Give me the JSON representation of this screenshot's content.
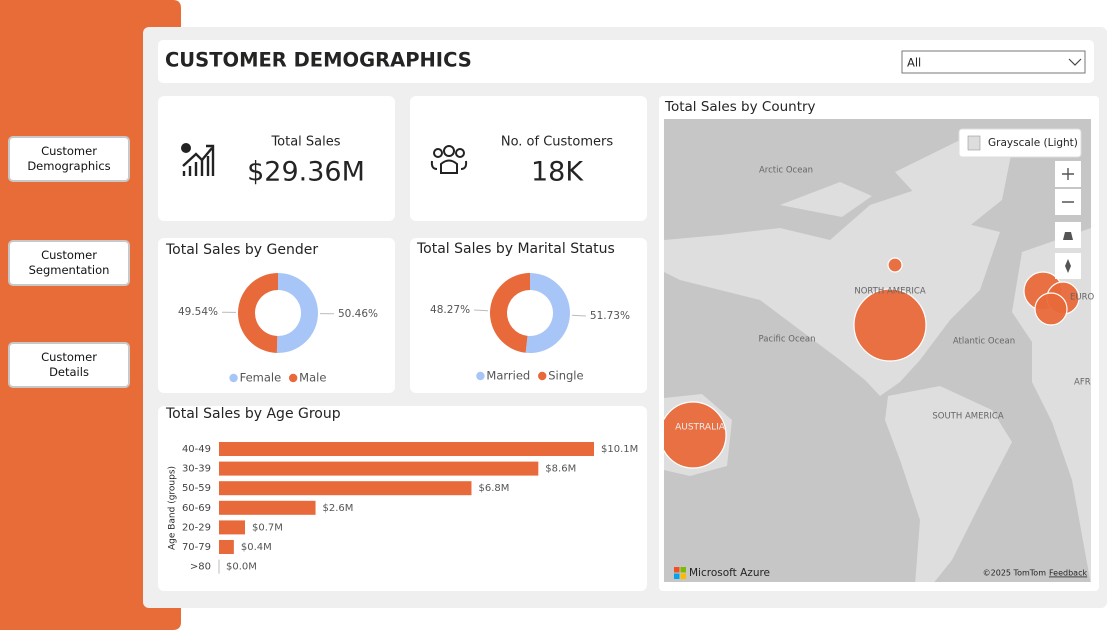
{
  "nav": [
    "Customer Demographics",
    "Customer Segmentation",
    "Customer Details"
  ],
  "header": {
    "title": "CUSTOMER DEMOGRAPHICS",
    "filter": "All"
  },
  "kpis": [
    {
      "label": "Total Sales",
      "value": "$29.36M"
    },
    {
      "label": "No. of Customers",
      "value": "18K"
    }
  ],
  "chart_data": [
    {
      "type": "donut",
      "title": "Total Sales by Gender",
      "categories": [
        "Female",
        "Male"
      ],
      "values": [
        50.46,
        49.54
      ],
      "value_labels": [
        "50.46%",
        "49.54%"
      ],
      "colors": [
        "#a8c5f7",
        "#e8693a"
      ]
    },
    {
      "type": "donut",
      "title": "Total Sales by Marital Status",
      "categories": [
        "Married",
        "Single"
      ],
      "values": [
        51.73,
        48.27
      ],
      "value_labels": [
        "51.73%",
        "48.27%"
      ],
      "colors": [
        "#a8c5f7",
        "#e8693a"
      ]
    },
    {
      "type": "hbar",
      "title": "Total Sales by Age Group",
      "y_label": "Age Band (groups)",
      "categories": [
        "40-49",
        "30-39",
        "50-59",
        "60-69",
        "20-29",
        "70-79",
        ">80"
      ],
      "values": [
        10.1,
        8.6,
        6.8,
        2.6,
        0.7,
        0.4,
        0.0
      ],
      "value_labels": [
        "$10.1M",
        "$8.6M",
        "$6.8M",
        "$2.6M",
        "$0.7M",
        "$0.4M",
        "$0.0M"
      ],
      "color": "#e8693a"
    }
  ],
  "map": {
    "title": "Total Sales by Country",
    "style_button": "Grayscale (Light)",
    "labels": [
      "Arctic Ocean",
      "NORTH AMERICA",
      "Pacific Ocean",
      "Atlantic Ocean",
      "SOUTH AMERICA",
      "AUSTRALIA",
      "EURO",
      "AFR"
    ],
    "brand": "Microsoft Azure",
    "copyright": "©2025 TomTom",
    "feedback": "Feedback"
  }
}
